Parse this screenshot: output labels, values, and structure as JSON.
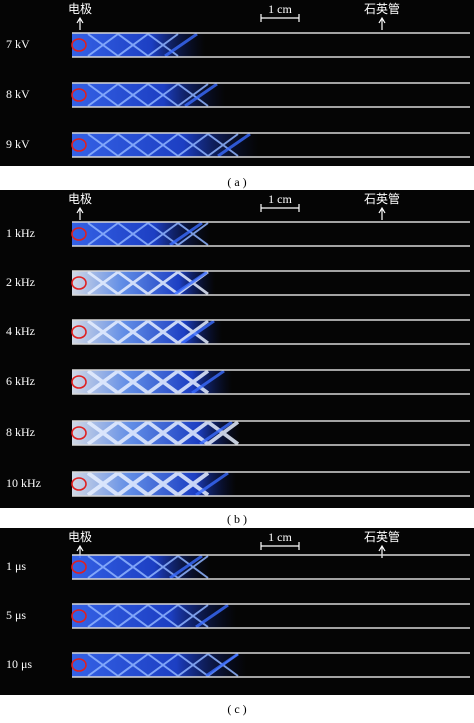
{
  "panels": [
    {
      "labels": {
        "electrode": "电极",
        "scale": "1 cm",
        "tube": "石英管"
      },
      "rows": [
        "7 kV",
        "8 kV",
        "9 kV"
      ],
      "caption": "( a )"
    },
    {
      "labels": {
        "electrode": "电极",
        "scale": "1 cm",
        "tube": "石英管"
      },
      "rows": [
        "1 kHz",
        "2 kHz",
        "4 kHz",
        "6 kHz",
        "8 kHz",
        "10 kHz"
      ],
      "caption": "( b )"
    },
    {
      "labels": {
        "electrode": "电极",
        "scale": "1 cm",
        "tube": "石英管"
      },
      "rows": [
        "1 μs",
        "5 μs",
        "10 μs"
      ],
      "caption": "( c )"
    }
  ]
}
